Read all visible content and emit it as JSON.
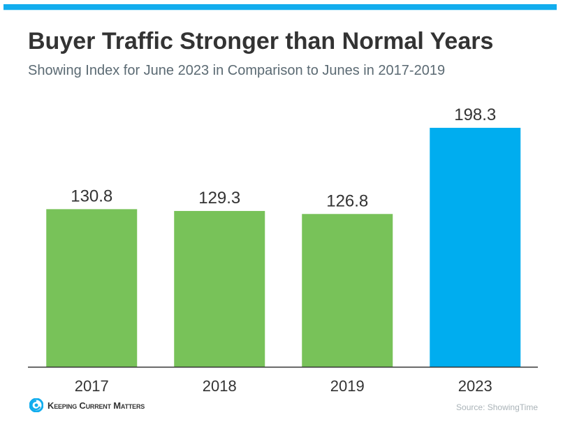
{
  "title": "Buyer Traffic Stronger than Normal Years",
  "subtitle": "Showing Index for June 2023 in Comparison to Junes in 2017-2019",
  "logo": {
    "text": "Keeping Current Matters",
    "icon": "swirl-logo-icon",
    "color": "#12adee"
  },
  "source": "Source: ShowingTime",
  "colors": {
    "accent_bar": "#12adee",
    "green": "#78c259",
    "blue": "#00adef"
  },
  "chart_data": {
    "type": "bar",
    "title": "Buyer Traffic Stronger than Normal Years",
    "subtitle": "Showing Index for June 2023 in Comparison to Junes in 2017-2019",
    "categories": [
      "2017",
      "2018",
      "2019",
      "2023"
    ],
    "values": [
      130.8,
      129.3,
      126.8,
      198.3
    ],
    "value_labels": [
      "130.8",
      "129.3",
      "126.8",
      "198.3"
    ],
    "bar_colors": [
      "#78c259",
      "#78c259",
      "#78c259",
      "#00adef"
    ],
    "xlabel": "",
    "ylabel": "",
    "ylim": [
      0,
      200
    ],
    "grid": false,
    "legend": "none"
  }
}
